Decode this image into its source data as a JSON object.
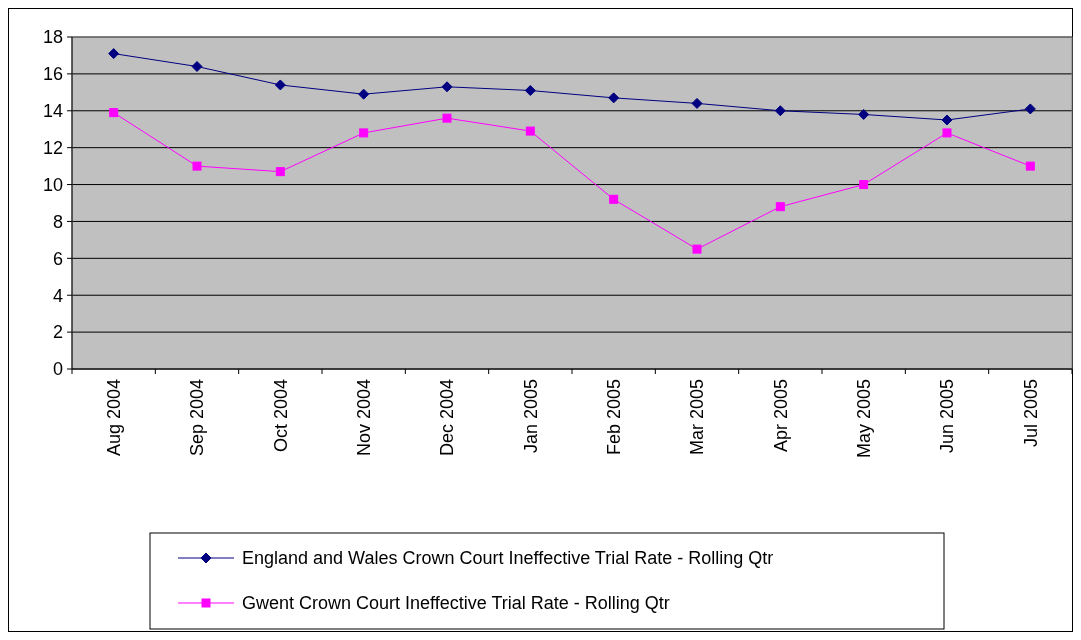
{
  "chart_data": {
    "type": "line",
    "categories": [
      "Aug 2004",
      "Sep 2004",
      "Oct 2004",
      "Nov 2004",
      "Dec 2004",
      "Jan 2005",
      "Feb 2005",
      "Mar 2005",
      "Apr 2005",
      "May 2005",
      "Jun 2005",
      "Jul 2005"
    ],
    "series": [
      {
        "name": "England and Wales Crown Court Ineffective Trial Rate - Rolling Qtr",
        "color": "#000080",
        "marker": "diamond",
        "values": [
          17.1,
          16.4,
          15.4,
          14.9,
          15.3,
          15.1,
          14.7,
          14.4,
          14.0,
          13.8,
          13.5,
          14.1
        ]
      },
      {
        "name": "Gwent Crown Court Ineffective Trial Rate - Rolling Qtr",
        "color": "#ff00ff",
        "marker": "square",
        "values": [
          13.9,
          11.0,
          10.7,
          12.8,
          13.6,
          12.9,
          9.2,
          6.5,
          8.8,
          10.0,
          12.8,
          11.0
        ]
      }
    ],
    "ylim": [
      0,
      18
    ],
    "yticks": [
      0,
      2,
      4,
      6,
      8,
      10,
      12,
      14,
      16,
      18
    ],
    "grid": "y",
    "legend": "bottom"
  }
}
